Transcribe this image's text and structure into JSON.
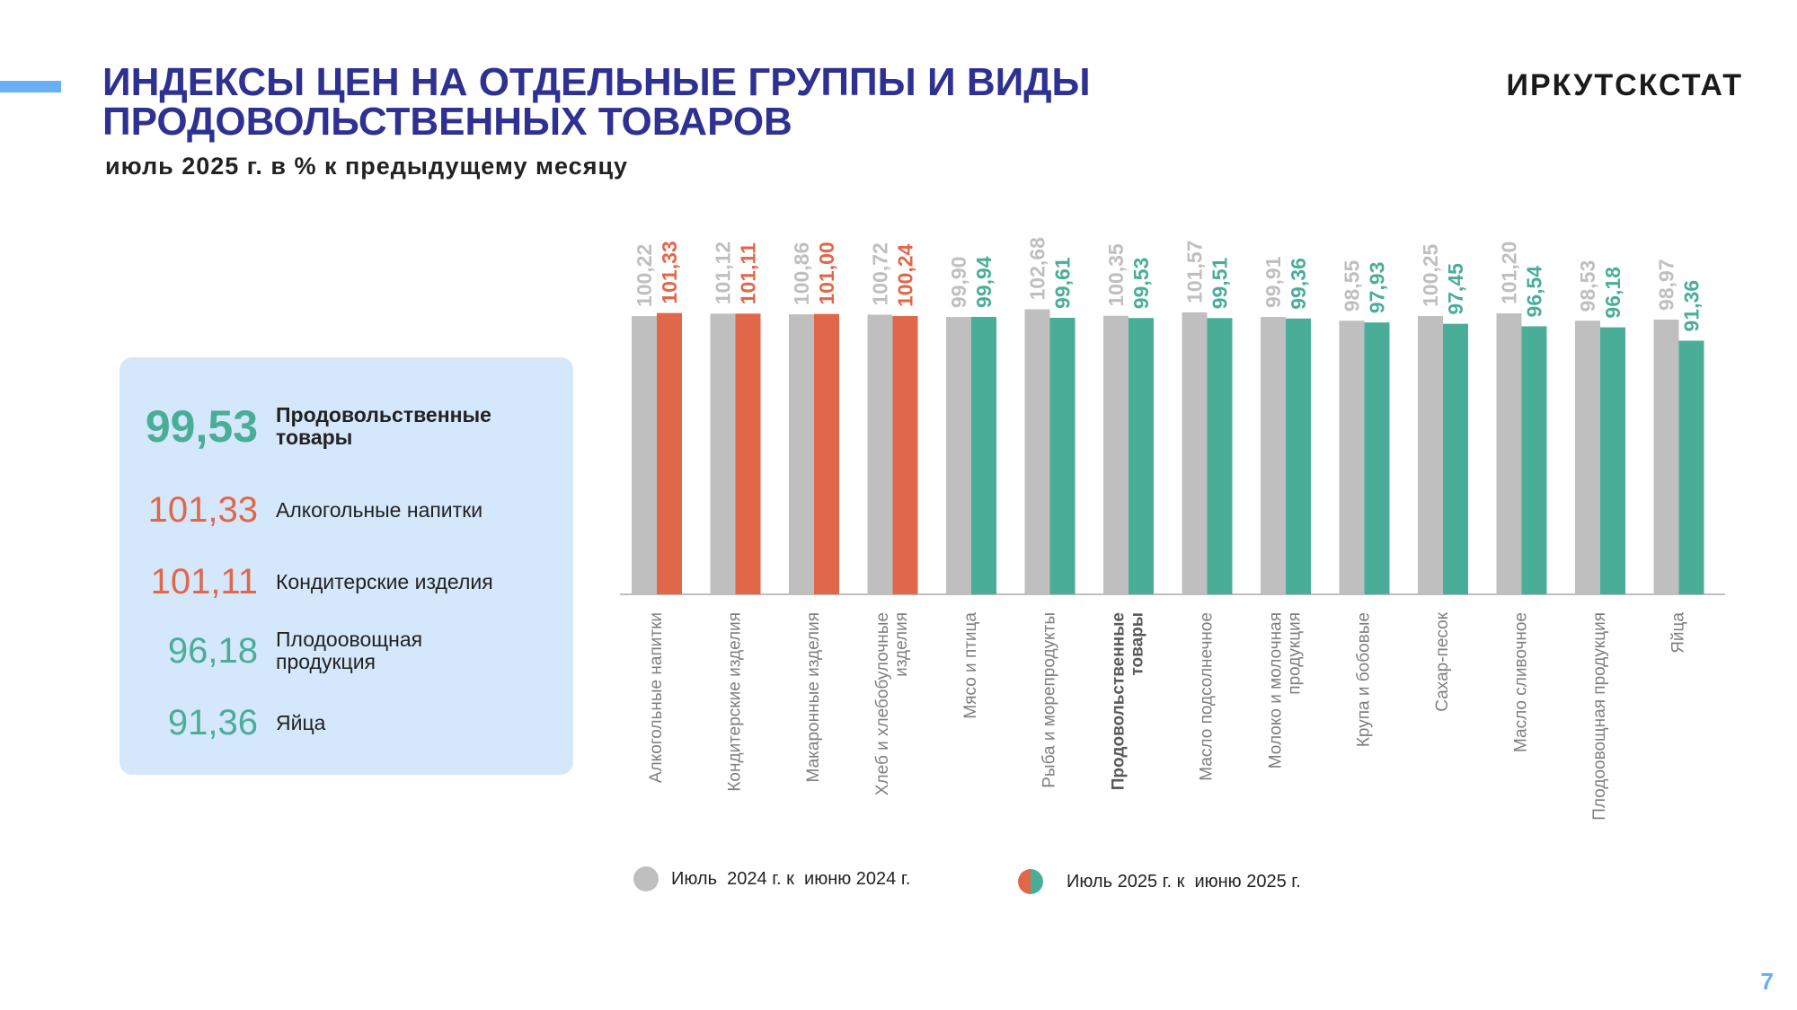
{
  "header": {
    "title": "ИНДЕКСЫ ЦЕН НА ОТДЕЛЬНЫЕ ГРУППЫ И ВИДЫ ПРОДОВОЛЬСТВЕННЫХ ТОВАРОВ",
    "subtitle": "июль 2025 г. в % к предыдущему месяцу",
    "brand": "ИРКУТСКСТАТ"
  },
  "summary": [
    {
      "value": "99,53",
      "label": "Продовольственные товары",
      "color": "#4aad98"
    },
    {
      "value": "101,33",
      "label": "Алкогольные напитки",
      "color": "#e0674a"
    },
    {
      "value": "101,11",
      "label": "Кондитерские изделия",
      "color": "#e0674a"
    },
    {
      "value": "96,18",
      "label": "Плодоовощная продукция",
      "color": "#4aad98"
    },
    {
      "value": "91,36",
      "label": "Яйца",
      "color": "#4aad98"
    }
  ],
  "colors": {
    "prev": "#bfbfbf",
    "increase": "#e0674a",
    "decrease": "#4aad98",
    "title": "#2e3192",
    "accent": "#6aaef5",
    "summary_bg": "#d5e7fb"
  },
  "chart_data": {
    "type": "bar",
    "categories": [
      "Алкогольные напитки",
      "Кондитерские изделия",
      "Макаронные изделия",
      "Хлеб и хлебобулочные изделия",
      "Мясо и птица",
      "Рыба и морепродукты",
      "Продовольственные товары",
      "Масло подсолнечное",
      "Молоко и молочная продукция",
      "Крупа и бобовые",
      "Сахар-песок",
      "Масло сливочное",
      "Плодоовощная продукция",
      "Яйца"
    ],
    "category_lines": [
      [
        "Алкогольные напитки"
      ],
      [
        "Кондитерские изделия"
      ],
      [
        "Макаронные изделия"
      ],
      [
        "Хлеб и хлебобулочные",
        "изделия"
      ],
      [
        "Мясо и птица"
      ],
      [
        "Рыба и морепродукты"
      ],
      [
        "Продовольственные",
        "товары"
      ],
      [
        "Масло подсолнечное"
      ],
      [
        "Молоко и молочная",
        "продукция"
      ],
      [
        "Крупа и бобовые"
      ],
      [
        "Сахар-песок"
      ],
      [
        "Масло сливочное"
      ],
      [
        "Плодоовощная продукция"
      ],
      [
        "Яйца"
      ]
    ],
    "bold_category_index": 6,
    "series": [
      {
        "name": "Июль  2024 г. к  июню 2024 г.",
        "values": [
          100.22,
          101.12,
          100.86,
          100.72,
          99.9,
          102.68,
          100.35,
          101.57,
          99.91,
          98.55,
          100.25,
          101.2,
          98.53,
          98.97
        ],
        "labels": [
          "100,22",
          "101,12",
          "100,86",
          "100,72",
          "99,90",
          "102,68",
          "100,35",
          "101,57",
          "99,91",
          "98,55",
          "100,25",
          "101,20",
          "98,53",
          "98,97"
        ]
      },
      {
        "name": "Июль 2025 г. к  июню 2025 г.",
        "values": [
          101.33,
          101.11,
          101.0,
          100.24,
          99.94,
          99.61,
          99.53,
          99.51,
          99.36,
          97.93,
          97.45,
          96.54,
          96.18,
          91.36
        ],
        "labels": [
          "101,33",
          "101,11",
          "101,00",
          "100,24",
          "99,94",
          "99,61",
          "99,53",
          "99,51",
          "99,36",
          "97,93",
          "97,45",
          "96,54",
          "96,18",
          "91,36"
        ]
      }
    ]
  },
  "legend": [
    {
      "label": "Июль  2024 г. к  июню 2024 г."
    },
    {
      "label": "Июль 2025 г. к  июню 2025 г."
    }
  ],
  "page_number": "7"
}
